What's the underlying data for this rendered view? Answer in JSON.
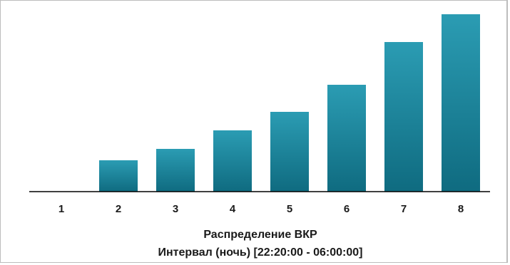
{
  "chart_data": {
    "type": "bar",
    "categories": [
      "1",
      "2",
      "3",
      "4",
      "5",
      "6",
      "7",
      "8"
    ],
    "values": [
      0,
      44,
      60,
      86,
      112,
      150,
      210,
      249
    ],
    "title": "Распределение ВКР",
    "subtitle": "Интервал (ночь) [22:20:00 - 06:00:00]",
    "xlabel": "",
    "ylabel": "",
    "ylim": [
      0,
      249
    ],
    "grid": false,
    "legend": "none",
    "bar_color_top": "#2b9cb3",
    "bar_color_bottom": "#0f6b80"
  }
}
